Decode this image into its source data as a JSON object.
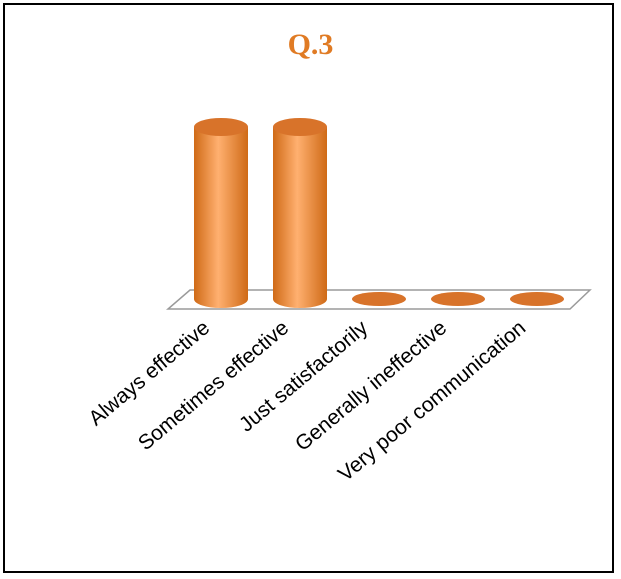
{
  "chart_data": {
    "type": "bar",
    "style": "3d-cylinder",
    "title": "Q.3",
    "categories": [
      "Always effective",
      "Sometimes effective",
      "Just satisfactorily",
      "Generally ineffective",
      "Very poor communication"
    ],
    "values": [
      50,
      50,
      0,
      0,
      0
    ],
    "ylim": [
      0,
      50
    ],
    "grid": false,
    "legend": "none",
    "xlabel": "",
    "ylabel": ""
  },
  "colors": {
    "title": "#e07b24",
    "bar_body_dark": "#cf6a16",
    "bar_body_light": "#ffb070",
    "bar_top": "#d8732a",
    "floor_stroke": "#9a9a9a"
  }
}
